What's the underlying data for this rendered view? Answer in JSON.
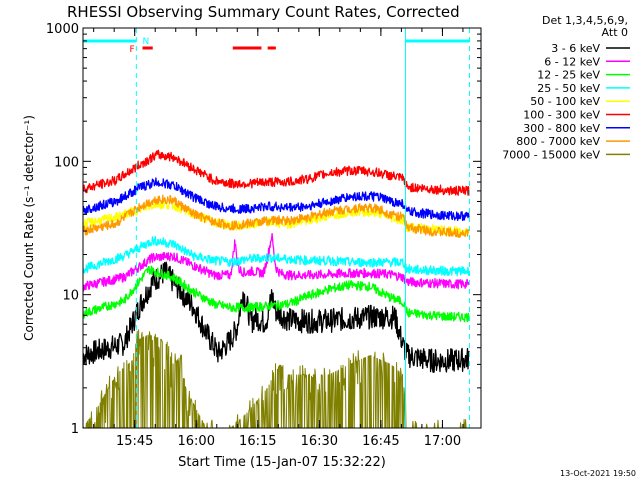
{
  "chart_data": {
    "type": "line",
    "title": "RHESSI Observing Summary Count Rates, Corrected",
    "xlabel": "Start Time (15-Jan-07 15:32:22)",
    "ylabel": "Corrected Count Rate (s⁻¹ detector⁻¹)",
    "x_unit": "minutes after 15:32:22 UT",
    "xlim": [
      0,
      97
    ],
    "yscale": "log",
    "ylim": [
      1,
      1000
    ],
    "x_ticks": [
      {
        "t": 12.6,
        "label": "15:45"
      },
      {
        "t": 27.6,
        "label": "16:00"
      },
      {
        "t": 42.6,
        "label": "16:15"
      },
      {
        "t": 57.6,
        "label": "16:30"
      },
      {
        "t": 72.6,
        "label": "16:45"
      },
      {
        "t": 87.6,
        "label": "17:00"
      }
    ],
    "y_ticks": [
      {
        "v": 1,
        "label": "1"
      },
      {
        "v": 10,
        "label": "10"
      },
      {
        "v": 100,
        "label": "100"
      },
      {
        "v": 1000,
        "label": "1000"
      }
    ],
    "legend": {
      "position": "right",
      "header": [
        "Det 1,3,4,5,6,9,",
        "Att 0"
      ]
    },
    "series": [
      {
        "name": "3 - 6 keV",
        "color": "#000000",
        "t": [
          0,
          10,
          14,
          17,
          20,
          24,
          27,
          30,
          33,
          36,
          37.5,
          39,
          40,
          41,
          42,
          44,
          45,
          46,
          47,
          50,
          55,
          60,
          65,
          70,
          76,
          78,
          79,
          85,
          90,
          94
        ],
        "v": [
          3.5,
          4.3,
          8.5,
          12.5,
          14.8,
          10.5,
          8.0,
          5.2,
          3.6,
          4.6,
          5.6,
          10.5,
          8.2,
          6.2,
          6.8,
          6.2,
          6.7,
          10.0,
          7.5,
          6.5,
          6.3,
          6.4,
          6.6,
          6.8,
          6.8,
          4.2,
          3.5,
          3.2,
          3.2,
          3.3
        ]
      },
      {
        "name": "6 - 12 keV",
        "color": "#ff00ff",
        "t": [
          0,
          10,
          17,
          22,
          27,
          32,
          36,
          37,
          38,
          39.5,
          41,
          44,
          45,
          46,
          47,
          48,
          50,
          55,
          60,
          65,
          70,
          75,
          78,
          79,
          85,
          90,
          94
        ],
        "v": [
          11.5,
          13.5,
          19.0,
          19.5,
          16.5,
          14.0,
          14.0,
          25.0,
          15.5,
          14.5,
          15.0,
          14.5,
          19.0,
          28.0,
          16.0,
          14.5,
          14.0,
          14.0,
          14.2,
          14.5,
          14.5,
          14.2,
          13.5,
          12.5,
          12.2,
          12.0,
          12.0
        ]
      },
      {
        "name": "12 - 25 keV",
        "color": "#00ff00",
        "t": [
          0,
          10,
          16,
          22,
          27,
          32,
          36,
          40,
          45,
          50,
          55,
          60,
          65,
          70,
          75,
          78,
          79,
          85,
          90,
          94
        ],
        "v": [
          7.2,
          9.0,
          15.5,
          13.5,
          10.5,
          8.5,
          8.0,
          8.0,
          8.2,
          8.5,
          9.8,
          11.0,
          11.8,
          11.5,
          9.5,
          8.8,
          7.3,
          7.0,
          6.8,
          6.8
        ]
      },
      {
        "name": "25 - 50 keV",
        "color": "#00ffff",
        "t": [
          0,
          10,
          17,
          22,
          27,
          32,
          36,
          40,
          45,
          50,
          55,
          60,
          65,
          70,
          75,
          78,
          79,
          85,
          90,
          94
        ],
        "v": [
          15.5,
          19.5,
          25.5,
          24.0,
          19.5,
          18.0,
          17.5,
          18.5,
          19.0,
          18.5,
          18.0,
          18.0,
          17.5,
          17.5,
          17.5,
          17.5,
          15.5,
          15.2,
          15.0,
          15.0
        ]
      },
      {
        "name": "50 - 100 keV",
        "color": "#ffff00",
        "t": [
          0,
          8,
          14,
          18,
          22,
          27,
          32,
          36,
          40,
          45,
          50,
          55,
          60,
          65,
          68,
          72,
          75,
          78,
          79,
          85,
          90,
          94
        ],
        "v": [
          34,
          38,
          44,
          48,
          47,
          40,
          35,
          33,
          33,
          35,
          34,
          36,
          39,
          42,
          42,
          41,
          38,
          36,
          32,
          31,
          30,
          30
        ]
      },
      {
        "name": "100 - 300 keV",
        "color": "#ff0000",
        "t": [
          0,
          8,
          14,
          18,
          22,
          27,
          32,
          36,
          40,
          45,
          50,
          55,
          60,
          65,
          68,
          72,
          75,
          78,
          79,
          85,
          90,
          94
        ],
        "v": [
          62,
          72,
          95,
          112,
          108,
          88,
          72,
          68,
          68,
          70,
          70,
          74,
          82,
          85,
          85,
          82,
          78,
          74,
          64,
          62,
          60,
          60
        ]
      },
      {
        "name": "300 - 800 keV",
        "color": "#0000ff",
        "t": [
          0,
          8,
          14,
          18,
          22,
          27,
          32,
          36,
          40,
          45,
          50,
          55,
          60,
          65,
          68,
          72,
          75,
          78,
          79,
          85,
          90,
          94
        ],
        "v": [
          43,
          50,
          64,
          70,
          66,
          54,
          46,
          44,
          44,
          46,
          45,
          46,
          50,
          54,
          55,
          54,
          50,
          48,
          42,
          40,
          39,
          39
        ]
      },
      {
        "name": "800 - 7000 keV",
        "color": "#ff9900",
        "t": [
          0,
          8,
          14,
          18,
          22,
          27,
          32,
          36,
          40,
          45,
          50,
          55,
          60,
          65,
          68,
          72,
          75,
          78,
          79,
          85,
          90,
          94
        ],
        "v": [
          30,
          34,
          46,
          52,
          51,
          40,
          35,
          33,
          34,
          36,
          36,
          38,
          42,
          44,
          45,
          44,
          40,
          38,
          32,
          30,
          29,
          29
        ]
      },
      {
        "name": "7000 - 15000 keV",
        "color": "#808000",
        "t": [
          0,
          4,
          8,
          12,
          13,
          16,
          20,
          22,
          24,
          25,
          27,
          30,
          33,
          36,
          40,
          45,
          48,
          50,
          55,
          60,
          65,
          70,
          75,
          78,
          79,
          85,
          90,
          94
        ],
        "v": [
          1,
          1.5,
          2.5,
          3.2,
          4.5,
          5.0,
          4.5,
          3.0,
          3.5,
          2.0,
          1.5,
          1.0,
          1.0,
          1.0,
          1.3,
          2.0,
          3.0,
          2.5,
          2.5,
          2.5,
          3.0,
          3.5,
          3.0,
          2.5,
          1.0,
          1.0,
          1.0,
          1.0
        ]
      }
    ],
    "attenuator_bar": {
      "color": "#00ffff",
      "segments": [
        [
          0,
          13
        ],
        [
          78.6,
          94.2
        ]
      ]
    },
    "saa_lines": {
      "color": "#00ffff",
      "style": "dashed",
      "t": [
        13,
        94.2
      ]
    },
    "solid_lines": {
      "color": "#00ffff",
      "t": [
        78.6
      ]
    },
    "flag_markers": [
      {
        "label": "F",
        "color": "#ff0000",
        "t": 12.8
      },
      {
        "label": "N",
        "color": "#00ffff",
        "t": 14.5
      }
    ],
    "flare_bars": {
      "color": "#ff0000",
      "segments": [
        [
          14.5,
          17
        ],
        [
          36.5,
          43.5
        ],
        [
          45,
          47
        ]
      ]
    }
  },
  "footer": {
    "timestamp": "13-Oct-2021 19:50"
  }
}
